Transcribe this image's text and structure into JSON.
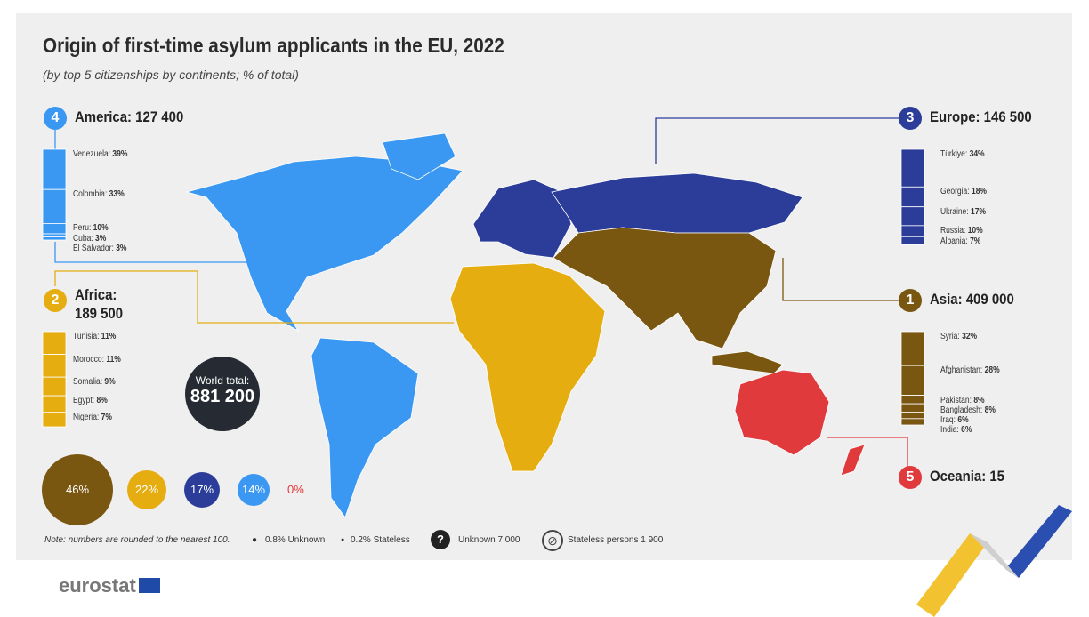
{
  "title": "Origin of first-time asylum applicants in the EU, 2022",
  "subtitle": "(by top 5 citizenships by continents; % of total)",
  "colors": {
    "america": "#3a97f2",
    "africa": "#e5ad10",
    "europe": "#2b3d98",
    "asia": "#7a5710",
    "oceania": "#e03a3c",
    "world": "#262b33"
  },
  "continents": {
    "america": {
      "rank": "4",
      "label": "America: 127 400",
      "items": [
        {
          "name": "Venezuela: ",
          "pct": "39%",
          "v": 39
        },
        {
          "name": "Colombia: ",
          "pct": "33%",
          "v": 33
        },
        {
          "name": "Peru: ",
          "pct": "10%",
          "v": 10
        },
        {
          "name": "Cuba: ",
          "pct": "3%",
          "v": 3
        },
        {
          "name": "El Salvador: ",
          "pct": "3%",
          "v": 3
        }
      ]
    },
    "africa": {
      "rank": "2",
      "label": "Africa:",
      "value": "189 500",
      "items": [
        {
          "name": "Tunisia: ",
          "pct": "11%",
          "v": 11
        },
        {
          "name": "Morocco: ",
          "pct": "11%",
          "v": 11
        },
        {
          "name": "Somalia: ",
          "pct": "9%",
          "v": 9
        },
        {
          "name": "Egypt: ",
          "pct": "8%",
          "v": 8
        },
        {
          "name": "Nigeria: ",
          "pct": "7%",
          "v": 7
        }
      ]
    },
    "europe": {
      "rank": "3",
      "label": "Europe: 146 500",
      "items": [
        {
          "name": "Türkiye: ",
          "pct": "34%",
          "v": 34
        },
        {
          "name": "Georgia: ",
          "pct": "18%",
          "v": 18
        },
        {
          "name": "Ukraine: ",
          "pct": "17%",
          "v": 17
        },
        {
          "name": "Russia: ",
          "pct": "10%",
          "v": 10
        },
        {
          "name": "Albania: ",
          "pct": "7%",
          "v": 7
        }
      ]
    },
    "asia": {
      "rank": "1",
      "label": "Asia: 409 000",
      "items": [
        {
          "name": "Syria: ",
          "pct": "32%",
          "v": 32
        },
        {
          "name": "Afghanistan: ",
          "pct": "28%",
          "v": 28
        },
        {
          "name": "Pakistan: ",
          "pct": "8%",
          "v": 8
        },
        {
          "name": "Bangladesh: ",
          "pct": "8%",
          "v": 8
        },
        {
          "name": "Iraq: ",
          "pct": "6%",
          "v": 6
        },
        {
          "name": "India: ",
          "pct": "6%",
          "v": 6
        }
      ]
    },
    "oceania": {
      "rank": "5",
      "label": "Oceania: 15"
    }
  },
  "world": {
    "label": "World total:",
    "value": "881 200"
  },
  "shares": {
    "asia": "46%",
    "africa": "22%",
    "europe": "17%",
    "america": "14%",
    "oceania": "0%"
  },
  "footer": {
    "note": "Note: numbers are rounded to the nearest 100.",
    "unknown_pct": "0.8% Unknown",
    "stateless_pct": "0.2% Stateless",
    "unknown": "Unknown 7 000",
    "stateless": "Stateless persons 1 900",
    "logo": "eurostat"
  }
}
